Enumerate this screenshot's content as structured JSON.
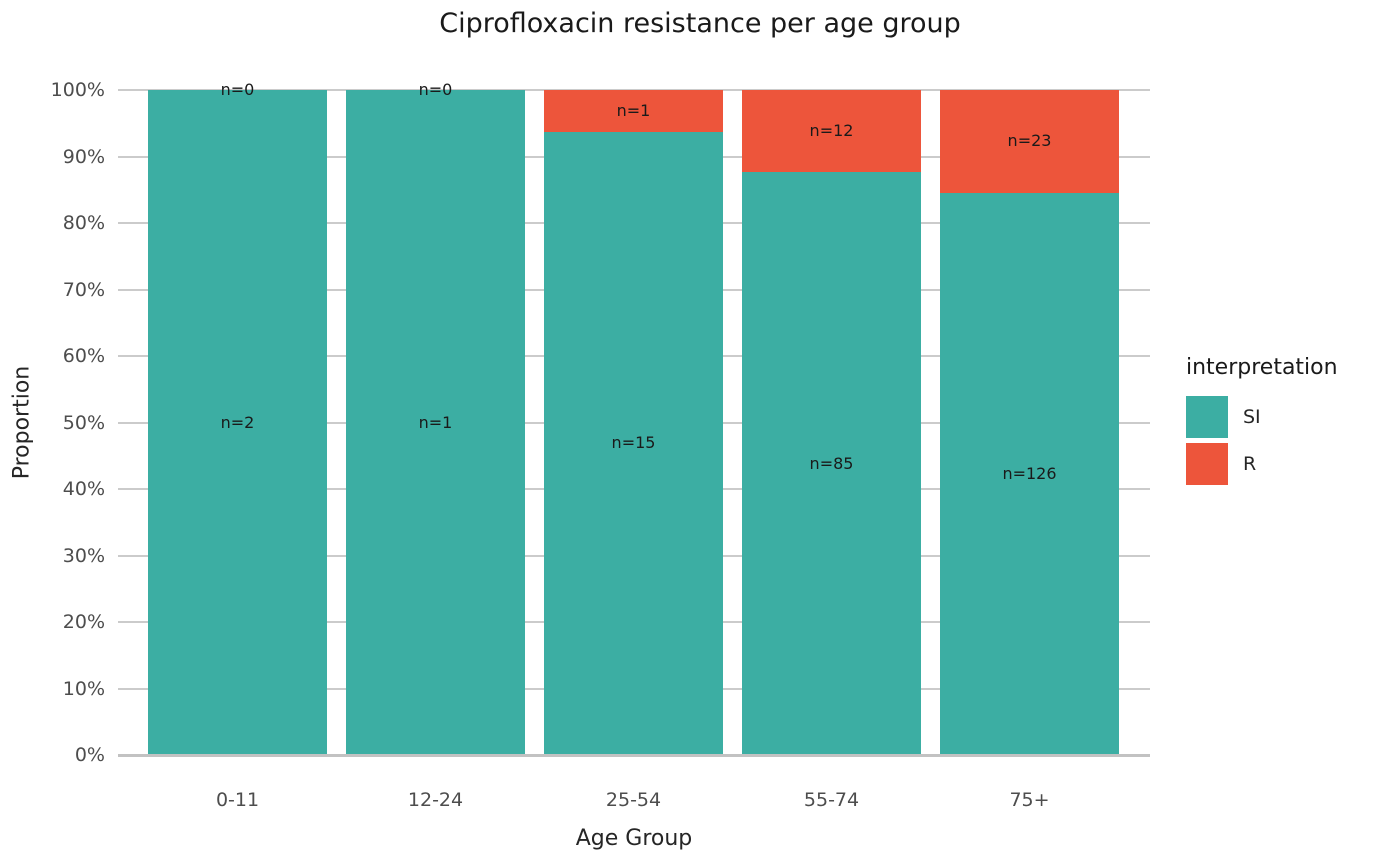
{
  "chart_data": {
    "type": "bar",
    "stacking": "percent",
    "title": "Ciprofloxacin resistance per age group",
    "xlabel": "Age Group",
    "ylabel": "Proportion",
    "categories": [
      "0-11",
      "12-24",
      "25-54",
      "55-74",
      "75+"
    ],
    "series": [
      {
        "name": "SI",
        "color": "#3caea3",
        "counts": [
          2,
          1,
          15,
          85,
          126
        ],
        "labels": [
          "n=2",
          "n=1",
          "n=15",
          "n=85",
          "n=126"
        ]
      },
      {
        "name": "R",
        "color": "#ed553b",
        "counts": [
          0,
          0,
          1,
          12,
          23
        ],
        "labels": [
          "n=0",
          "n=0",
          "n=1",
          "n=12",
          "n=23"
        ]
      }
    ],
    "resistant_percent": [
      0,
      0,
      6.25,
      12.37,
      15.44
    ],
    "y_ticks": [
      "0%",
      "10%",
      "20%",
      "30%",
      "40%",
      "50%",
      "60%",
      "70%",
      "80%",
      "90%",
      "100%"
    ],
    "ylim": [
      0,
      100
    ],
    "grid": "horizontal-only",
    "legend": {
      "title": "interpretation",
      "position": "right",
      "entries": [
        {
          "label": "SI",
          "color": "#3caea3"
        },
        {
          "label": "R",
          "color": "#ed553b"
        }
      ]
    }
  },
  "colors": {
    "si": "#3caea3",
    "r": "#ed553b",
    "gridline": "#cbcbcb",
    "baseline": "#c2c2c2",
    "tick_text": "#4d4d4d",
    "title_text": "#1a1a1a"
  }
}
